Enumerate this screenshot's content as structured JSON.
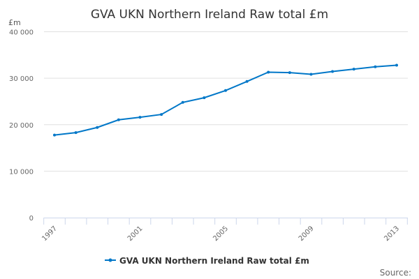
{
  "chart_data": {
    "type": "line",
    "title": "GVA UKN Northern Ireland Raw total £m",
    "ylabel": "£m",
    "xlabel": "",
    "ylim": [
      0,
      40000
    ],
    "yticks": [
      0,
      10000,
      20000,
      30000,
      40000
    ],
    "ytick_labels": [
      "0",
      "10 000",
      "20 000",
      "30 000",
      "40 000"
    ],
    "x": [
      1997,
      1998,
      1999,
      2000,
      2001,
      2002,
      2003,
      2004,
      2005,
      2006,
      2007,
      2008,
      2009,
      2010,
      2011,
      2012,
      2013
    ],
    "xtick_labels": [
      "1997",
      "2001",
      "2005",
      "2009",
      "2013"
    ],
    "series": [
      {
        "name": "GVA UKN Northern Ireland Raw total £m",
        "color": "#0077c8",
        "values": [
          17760,
          18300,
          19400,
          21050,
          21600,
          22200,
          24800,
          25800,
          27350,
          29300,
          31300,
          31200,
          30850,
          31450,
          31950,
          32450,
          32800
        ]
      }
    ],
    "grid": true,
    "legend": "bottom-center",
    "source_label": "Source:"
  }
}
